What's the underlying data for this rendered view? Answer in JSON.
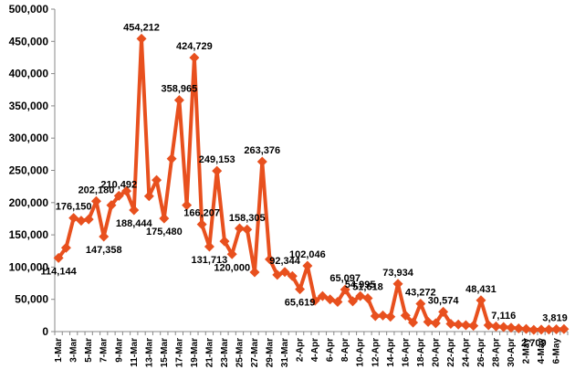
{
  "chart_data": {
    "type": "line",
    "title": "",
    "xlabel": "",
    "ylabel": "",
    "ylim": [
      0,
      500000
    ],
    "yticks": [
      "0",
      "50,000",
      "100,000",
      "150,000",
      "200,000",
      "250,000",
      "300,000",
      "350,000",
      "400,000",
      "450,000",
      "500,000"
    ],
    "grid": false,
    "line_color": "#E8501E",
    "categories": [
      "1-Mar",
      "3-Mar",
      "5-Mar",
      "7-Mar",
      "9-Mar",
      "11-Mar",
      "13-Mar",
      "15-Mar",
      "17-Mar",
      "19-Mar",
      "21-Mar",
      "23-Mar",
      "25-Mar",
      "27-Mar",
      "29-Mar",
      "31-Mar",
      "2-Apr",
      "4-Apr",
      "6-Apr",
      "8-Apr",
      "10-Apr",
      "12-Apr",
      "14-Apr",
      "16-Apr",
      "18-Apr",
      "20-Apr",
      "22-Apr",
      "24-Apr",
      "26-Apr",
      "28-Apr",
      "30-Apr",
      "2-May",
      "4-May",
      "6-May"
    ],
    "x": [
      "1-Mar",
      "2-Mar",
      "3-Mar",
      "4-Mar",
      "5-Mar",
      "6-Mar",
      "7-Mar",
      "8-Mar",
      "9-Mar",
      "10-Mar",
      "11-Mar",
      "12-Mar",
      "13-Mar",
      "14-Mar",
      "15-Mar",
      "16-Mar",
      "17-Mar",
      "18-Mar",
      "19-Mar",
      "20-Mar",
      "21-Mar",
      "22-Mar",
      "23-Mar",
      "24-Mar",
      "25-Mar",
      "26-Mar",
      "27-Mar",
      "28-Mar",
      "29-Mar",
      "30-Mar",
      "31-Mar",
      "1-Apr",
      "2-Apr",
      "3-Apr",
      "4-Apr",
      "5-Apr",
      "6-Apr",
      "7-Apr",
      "8-Apr",
      "9-Apr",
      "10-Apr",
      "11-Apr",
      "12-Apr",
      "13-Apr",
      "14-Apr",
      "15-Apr",
      "16-Apr",
      "17-Apr",
      "18-Apr",
      "19-Apr",
      "20-Apr",
      "21-Apr",
      "22-Apr",
      "23-Apr",
      "24-Apr",
      "25-Apr",
      "26-Apr",
      "27-Apr",
      "28-Apr",
      "29-Apr",
      "30-Apr",
      "1-May",
      "2-May",
      "3-May",
      "4-May",
      "5-May",
      "6-May",
      "7-May"
    ],
    "values": [
      114144,
      130000,
      176150,
      172000,
      174000,
      202180,
      147358,
      196000,
      210492,
      218000,
      188444,
      454212,
      210000,
      235000,
      175480,
      268000,
      358965,
      196000,
      424729,
      166207,
      131713,
      249153,
      140000,
      120000,
      160000,
      158305,
      92000,
      263376,
      112000,
      88000,
      92344,
      86000,
      65619,
      102046,
      48000,
      55000,
      50000,
      46000,
      65097,
      47000,
      54995,
      51618,
      24000,
      25000,
      23000,
      73934,
      25000,
      14000,
      43272,
      15000,
      13000,
      30574,
      12000,
      11000,
      10000,
      9000,
      48431,
      10000,
      8000,
      7116,
      6000,
      5000,
      4000,
      2709,
      3000,
      3200,
      3500,
      3819
    ],
    "data_labels": [
      {
        "x": "1-Mar",
        "text": "114,144"
      },
      {
        "x": "3-Mar",
        "text": "176,150"
      },
      {
        "x": "6-Mar",
        "text": "202,180"
      },
      {
        "x": "7-Mar",
        "text": "147,358"
      },
      {
        "x": "9-Mar",
        "text": "210,492"
      },
      {
        "x": "11-Mar",
        "text": "188,444"
      },
      {
        "x": "12-Mar",
        "text": "454,212"
      },
      {
        "x": "15-Mar",
        "text": "175,480"
      },
      {
        "x": "17-Mar",
        "text": "358,965"
      },
      {
        "x": "19-Mar",
        "text": "424,729"
      },
      {
        "x": "20-Mar",
        "text": "166,207"
      },
      {
        "x": "21-Mar",
        "text": "131,713"
      },
      {
        "x": "22-Mar",
        "text": "249,153"
      },
      {
        "x": "24-Mar",
        "text": "120,000"
      },
      {
        "x": "26-Mar",
        "text": "158,305"
      },
      {
        "x": "28-Mar",
        "text": "263,376"
      },
      {
        "x": "31-Mar",
        "text": "92,344"
      },
      {
        "x": "2-Apr",
        "text": "65,619"
      },
      {
        "x": "3-Apr",
        "text": "102,046"
      },
      {
        "x": "8-Apr",
        "text": "65,097"
      },
      {
        "x": "10-Apr",
        "text": "54,995"
      },
      {
        "x": "11-Apr",
        "text": "51,618"
      },
      {
        "x": "15-Apr",
        "text": "73,934"
      },
      {
        "x": "18-Apr",
        "text": "43,272"
      },
      {
        "x": "21-Apr",
        "text": "30,574"
      },
      {
        "x": "26-Apr",
        "text": "48,431"
      },
      {
        "x": "29-Apr",
        "text": "7,116"
      },
      {
        "x": "3-May",
        "text": "2,709"
      },
      {
        "x": "7-May",
        "text": "3,819"
      }
    ]
  }
}
